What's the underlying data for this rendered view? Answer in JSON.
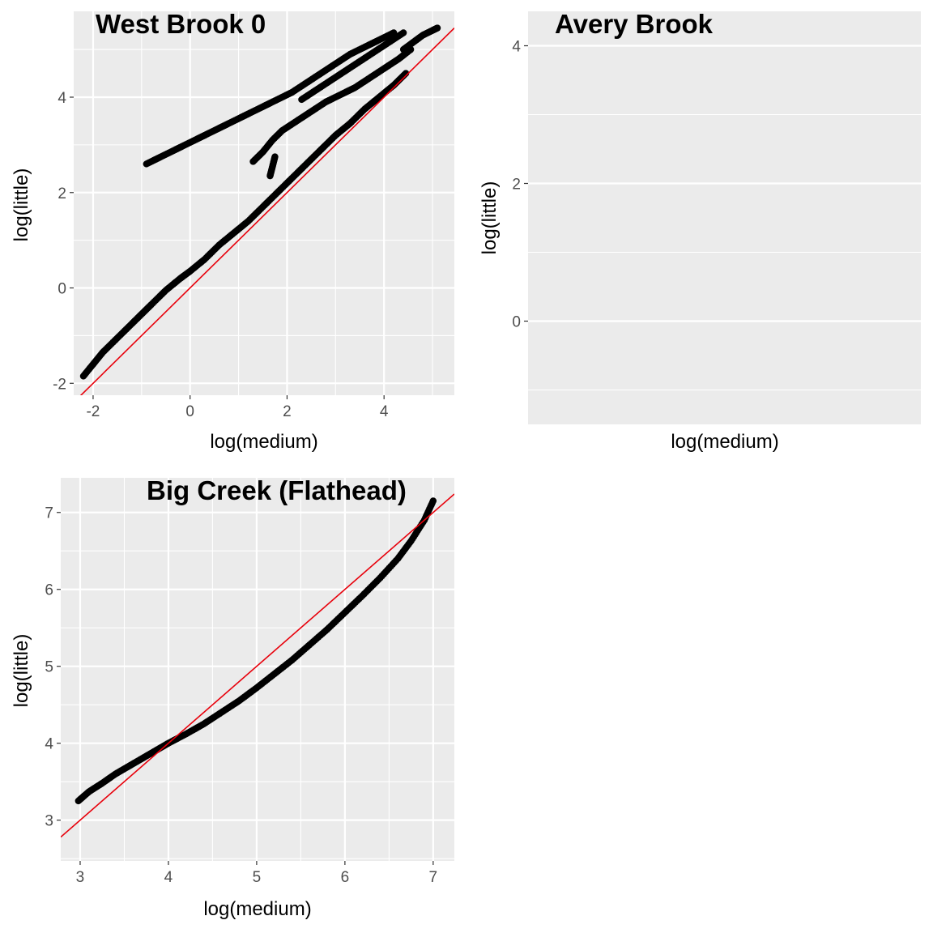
{
  "colors": {
    "panel_background": "#ebebeb",
    "grid_major": "#ffffff",
    "points": "#000000",
    "reference_line": "#e8000b",
    "tick_text": "#4d4d4d"
  },
  "chart_data": [
    {
      "type": "scatter",
      "title": "West Brook 0",
      "xlabel": "log(medium)",
      "ylabel": "log(little)",
      "xlim": [
        -2.4,
        5.45
      ],
      "ylim": [
        -2.25,
        5.8
      ],
      "x_ticks": [
        -2,
        0,
        2,
        4
      ],
      "y_ticks": [
        -2,
        0,
        2,
        4
      ],
      "grid": true,
      "reference_line": {
        "slope": 1,
        "intercept": 0,
        "color": "#e8000b"
      },
      "point_color": "#000000",
      "series": [
        {
          "x": [
            -2.2,
            -2.0,
            -1.8,
            -1.5,
            -1.2,
            -1.0,
            -0.8,
            -0.5,
            -0.2,
            0.0,
            0.3,
            0.6,
            0.9,
            1.2,
            1.5,
            1.8,
            2.1,
            2.4,
            2.7,
            3.0,
            3.3,
            3.6,
            3.9,
            4.2,
            4.45
          ],
          "y": [
            -1.85,
            -1.6,
            -1.35,
            -1.05,
            -0.75,
            -0.55,
            -0.35,
            -0.05,
            0.2,
            0.35,
            0.6,
            0.9,
            1.15,
            1.4,
            1.7,
            2.0,
            2.3,
            2.6,
            2.9,
            3.2,
            3.45,
            3.75,
            4.0,
            4.25,
            4.5
          ]
        },
        {
          "x": [
            1.3,
            1.5,
            1.7,
            1.9,
            2.2,
            2.5,
            2.8,
            3.1,
            3.4,
            3.7,
            4.0,
            4.3,
            4.55
          ],
          "y": [
            2.65,
            2.85,
            3.1,
            3.3,
            3.5,
            3.7,
            3.9,
            4.05,
            4.2,
            4.4,
            4.6,
            4.8,
            5.0
          ]
        },
        {
          "x": [
            1.65,
            1.7,
            1.75
          ],
          "y": [
            2.35,
            2.55,
            2.75
          ]
        },
        {
          "x": [
            -0.9,
            -0.6,
            -0.3,
            0.0,
            0.3,
            0.6,
            0.9,
            1.2,
            1.5,
            1.8,
            2.1,
            2.4,
            2.7,
            3.0,
            3.3,
            3.6,
            3.9,
            4.2
          ],
          "y": [
            2.6,
            2.75,
            2.9,
            3.05,
            3.2,
            3.35,
            3.5,
            3.65,
            3.8,
            3.95,
            4.1,
            4.3,
            4.5,
            4.7,
            4.9,
            5.05,
            5.2,
            5.35
          ]
        },
        {
          "x": [
            2.3,
            2.6,
            2.9,
            3.2,
            3.5,
            3.8,
            4.1,
            4.4
          ],
          "y": [
            3.95,
            4.15,
            4.35,
            4.55,
            4.75,
            4.95,
            5.15,
            5.35
          ]
        },
        {
          "x": [
            4.4,
            4.6,
            4.8,
            5.0,
            5.1
          ],
          "y": [
            5.0,
            5.15,
            5.3,
            5.4,
            5.45
          ]
        }
      ]
    },
    {
      "type": "scatter",
      "title": "Avery Brook",
      "xlabel": "log(medium)",
      "ylabel": "log(little)",
      "ylim": [
        -1.5,
        4.5
      ],
      "y_ticks": [
        0,
        2,
        4
      ],
      "grid": true,
      "series": []
    },
    {
      "type": "scatter",
      "title": "Big Creek (Flathead)",
      "xlabel": "log(medium)",
      "ylabel": "log(little)",
      "xlim": [
        2.78,
        7.24
      ],
      "ylim": [
        2.47,
        7.45
      ],
      "x_ticks": [
        3,
        4,
        5,
        6,
        7
      ],
      "y_ticks": [
        3,
        4,
        5,
        6,
        7
      ],
      "grid": true,
      "reference_line": {
        "slope": 1,
        "intercept": 0,
        "color": "#e8000b"
      },
      "point_color": "#000000",
      "series": [
        {
          "x": [
            2.98,
            3.1,
            3.25,
            3.4,
            3.55,
            3.7,
            3.85,
            4.0,
            4.2,
            4.4,
            4.6,
            4.8,
            5.0,
            5.2,
            5.4,
            5.6,
            5.8,
            6.0,
            6.2,
            6.4,
            6.6,
            6.75,
            6.9,
            7.0
          ],
          "y": [
            3.25,
            3.37,
            3.48,
            3.6,
            3.7,
            3.8,
            3.9,
            4.0,
            4.12,
            4.25,
            4.4,
            4.55,
            4.72,
            4.9,
            5.08,
            5.28,
            5.48,
            5.7,
            5.92,
            6.15,
            6.4,
            6.63,
            6.9,
            7.15
          ]
        }
      ]
    }
  ]
}
